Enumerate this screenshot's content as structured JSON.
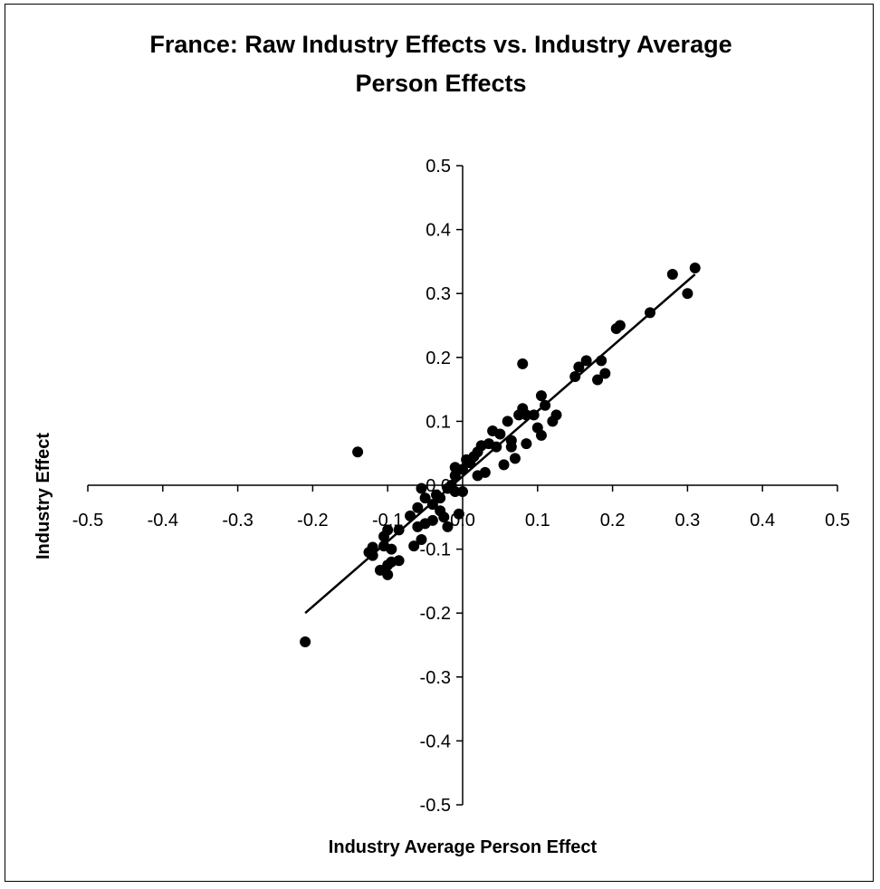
{
  "chart_data": {
    "type": "scatter",
    "title": "France: Raw Industry Effects vs. Industry Average Person Effects",
    "title_lines": [
      "France: Raw Industry Effects vs. Industry Average",
      "Person Effects"
    ],
    "xlabel": "Industry Average Person Effect",
    "ylabel": "Industry Effect",
    "xlim": [
      -0.5,
      0.5
    ],
    "ylim": [
      -0.5,
      0.5
    ],
    "x_ticks": [
      -0.5,
      -0.4,
      -0.3,
      -0.2,
      -0.1,
      0.0,
      0.1,
      0.2,
      0.3,
      0.4,
      0.5
    ],
    "y_ticks": [
      -0.5,
      -0.4,
      -0.3,
      -0.2,
      -0.1,
      0.0,
      0.1,
      0.2,
      0.3,
      0.4,
      0.5
    ],
    "x_tick_labels": [
      "-0.5",
      "-0.4",
      "-0.3",
      "-0.2",
      "-0.1",
      "0.0",
      "0.1",
      "0.2",
      "0.3",
      "0.4",
      "0.5"
    ],
    "y_tick_labels": [
      "-0.5",
      "-0.4",
      "-0.3",
      "-0.2",
      "-0.1",
      "0.0",
      "0.1",
      "0.2",
      "0.3",
      "0.4",
      "0.5"
    ],
    "grid": false,
    "legend": "none",
    "marker_color": "#000000",
    "trendline": {
      "x": [
        -0.21,
        0.31
      ],
      "y": [
        -0.2,
        0.33
      ]
    },
    "points": [
      [
        -0.21,
        -0.245
      ],
      [
        -0.14,
        0.052
      ],
      [
        -0.125,
        -0.105
      ],
      [
        -0.12,
        -0.097
      ],
      [
        -0.12,
        -0.11
      ],
      [
        -0.11,
        -0.133
      ],
      [
        -0.105,
        -0.095
      ],
      [
        -0.105,
        -0.08
      ],
      [
        -0.1,
        -0.07
      ],
      [
        -0.1,
        -0.125
      ],
      [
        -0.1,
        -0.14
      ],
      [
        -0.095,
        -0.12
      ],
      [
        -0.095,
        -0.1
      ],
      [
        -0.085,
        -0.118
      ],
      [
        -0.085,
        -0.07
      ],
      [
        -0.07,
        -0.048
      ],
      [
        -0.065,
        -0.095
      ],
      [
        -0.06,
        -0.065
      ],
      [
        -0.06,
        -0.035
      ],
      [
        -0.055,
        -0.005
      ],
      [
        -0.055,
        -0.085
      ],
      [
        -0.05,
        -0.02
      ],
      [
        -0.05,
        -0.06
      ],
      [
        -0.04,
        -0.055
      ],
      [
        -0.04,
        -0.03
      ],
      [
        -0.035,
        -0.015
      ],
      [
        -0.03,
        -0.04
      ],
      [
        -0.03,
        -0.02
      ],
      [
        -0.025,
        -0.05
      ],
      [
        -0.02,
        -0.065
      ],
      [
        -0.02,
        -0.005
      ],
      [
        -0.015,
        0.0
      ],
      [
        -0.01,
        -0.01
      ],
      [
        -0.01,
        0.015
      ],
      [
        -0.01,
        0.028
      ],
      [
        0.0,
        0.025
      ],
      [
        -0.005,
        -0.045
      ],
      [
        0.0,
        -0.01
      ],
      [
        0.005,
        0.04
      ],
      [
        0.01,
        0.035
      ],
      [
        0.015,
        0.045
      ],
      [
        0.02,
        0.015
      ],
      [
        0.02,
        0.052
      ],
      [
        0.025,
        0.062
      ],
      [
        0.03,
        0.02
      ],
      [
        0.035,
        0.065
      ],
      [
        0.04,
        0.085
      ],
      [
        0.045,
        0.06
      ],
      [
        0.05,
        0.08
      ],
      [
        0.055,
        0.032
      ],
      [
        0.06,
        0.1
      ],
      [
        0.065,
        0.07
      ],
      [
        0.065,
        0.06
      ],
      [
        0.07,
        0.042
      ],
      [
        0.075,
        0.11
      ],
      [
        0.08,
        0.12
      ],
      [
        0.085,
        0.11
      ],
      [
        0.08,
        0.19
      ],
      [
        0.085,
        0.065
      ],
      [
        0.095,
        0.11
      ],
      [
        0.1,
        0.09
      ],
      [
        0.105,
        0.14
      ],
      [
        0.105,
        0.078
      ],
      [
        0.11,
        0.125
      ],
      [
        0.12,
        0.1
      ],
      [
        0.125,
        0.11
      ],
      [
        0.15,
        0.17
      ],
      [
        0.155,
        0.185
      ],
      [
        0.165,
        0.195
      ],
      [
        0.18,
        0.165
      ],
      [
        0.185,
        0.195
      ],
      [
        0.19,
        0.175
      ],
      [
        0.205,
        0.245
      ],
      [
        0.21,
        0.25
      ],
      [
        0.25,
        0.27
      ],
      [
        0.28,
        0.33
      ],
      [
        0.3,
        0.3
      ],
      [
        0.31,
        0.34
      ]
    ]
  }
}
